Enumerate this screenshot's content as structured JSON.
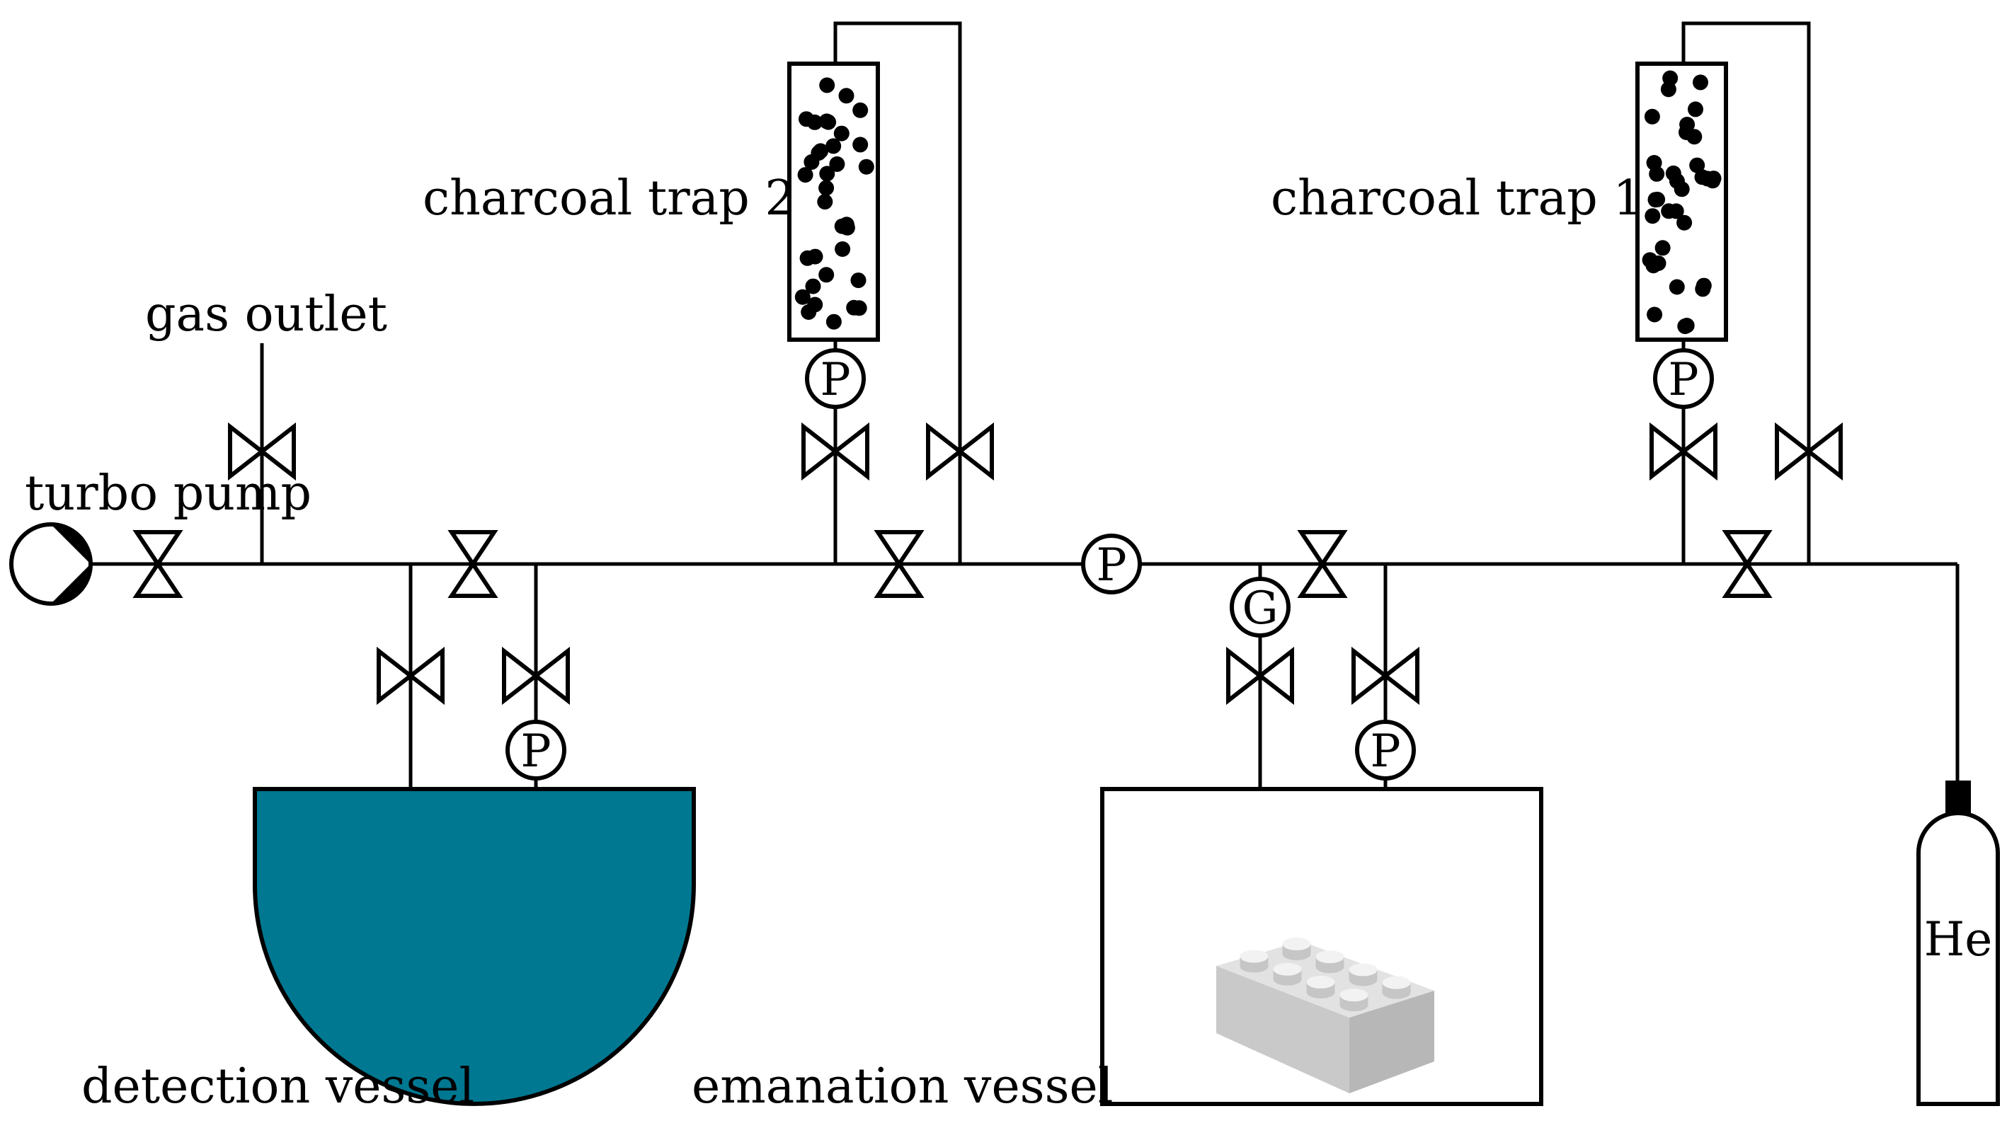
{
  "labels": {
    "gas_outlet": "gas outlet",
    "turbo_pump": "turbo pump",
    "charcoal_trap_2": "charcoal trap 2",
    "charcoal_trap_1": "charcoal trap 1",
    "detection_vessel": "detection vessel",
    "emanation_vessel": "emanation vessel",
    "helium_bottle": "He"
  },
  "gauges": {
    "pressure": "P",
    "gas_gauge": "G"
  },
  "colors": {
    "line": "#000000",
    "detection_vessel_fill": "#007891",
    "brick_fill": "#d9d9d9"
  }
}
